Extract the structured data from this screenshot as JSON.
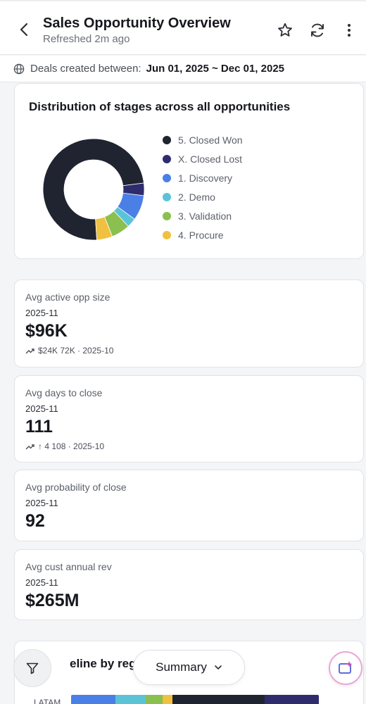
{
  "header": {
    "title": "Sales Opportunity Overview",
    "subtitle": "Refreshed 2m ago"
  },
  "filter": {
    "label": "Deals created between:",
    "value": "Jun 01, 2025 ~ Dec 01, 2025"
  },
  "stage_chart": {
    "title": "Distribution of stages across all opportunities",
    "legend": [
      {
        "label": "5. Closed Won",
        "color": "#1f2430"
      },
      {
        "label": "X. Closed Lost",
        "color": "#2f2c6e"
      },
      {
        "label": "1. Discovery",
        "color": "#4a7fe6"
      },
      {
        "label": "2. Demo",
        "color": "#5cc3d6"
      },
      {
        "label": "3. Validation",
        "color": "#8bbf4f"
      },
      {
        "label": "4. Procure",
        "color": "#f0c040"
      }
    ]
  },
  "chart_data": {
    "type": "pie",
    "labels": [
      "5. Closed Won",
      "X. Closed Lost",
      "1. Discovery",
      "2. Demo",
      "3. Validation",
      "4. Procure"
    ],
    "values": [
      74,
      4,
      8,
      3,
      6,
      5
    ],
    "donut": true,
    "legend": "right"
  },
  "kpis": [
    {
      "label": "Avg active opp size",
      "period": "2025-11",
      "value": "$96K",
      "trend": "$24K 72K · 2025-10"
    },
    {
      "label": "Avg days to close",
      "period": "2025-11",
      "value": "111",
      "trend": "↑ 4 108 · 2025-10"
    },
    {
      "label": "Avg probability of close",
      "period": "2025-11",
      "value": "92"
    },
    {
      "label": "Avg cust annual rev",
      "period": "2025-11",
      "value": "$265M"
    }
  ],
  "region": {
    "title": "eline by region",
    "row_label": "LATAM",
    "colors": [
      "#4a7fe6",
      "#5cc3d6",
      "#8bbf4f",
      "#f0c040",
      "#1f2430",
      "#2f2c6e"
    ],
    "values": [
      18,
      12,
      7,
      4,
      37,
      22
    ]
  },
  "bottom": {
    "summary_label": "Summary"
  }
}
